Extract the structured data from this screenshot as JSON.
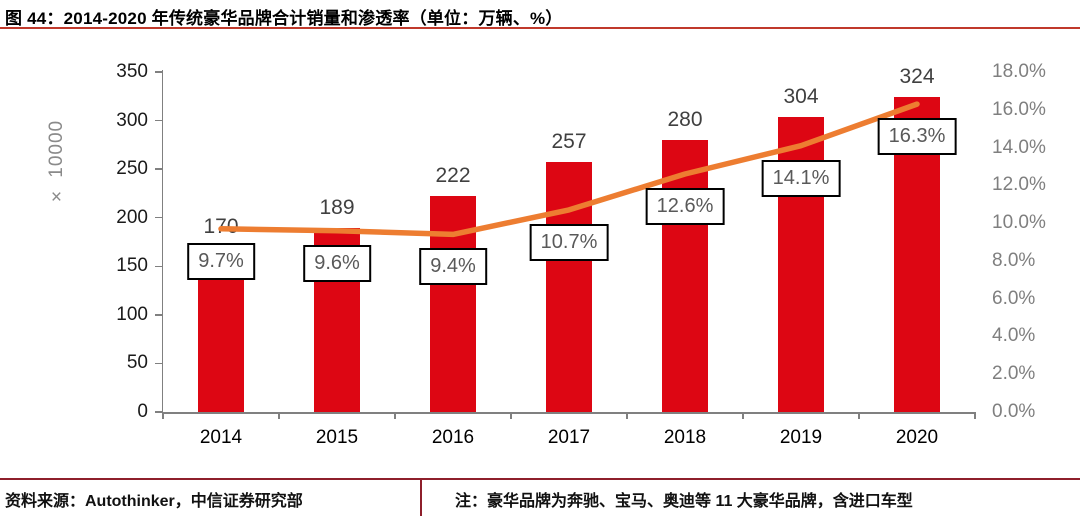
{
  "title": "图 44：2014-2020 年传统豪华品牌合计销量和渗透率（单位：万辆、%）",
  "footer": {
    "source": "资料来源：Autothinker，中信证券研究部",
    "note": "注：豪华品牌为奔驰、宝马、奥迪等 11 大豪华品牌，含进口车型"
  },
  "colors": {
    "bar": "#DD0613",
    "line": "#ED7D31",
    "title_rule": "#C0392B",
    "footer_rule": "#8E1F2B",
    "axis": "#808080",
    "left_tick_text": "#1a1a1a",
    "right_tick_text": "#7F7F7F",
    "bar_label_text": "#404040",
    "pct_label_text": "#595959"
  },
  "chart_data": {
    "type": "bar",
    "subtype": "bar+line combo, dual axis",
    "title": "图 44：2014-2020 年传统豪华品牌合计销量和渗透率（单位：万辆、%）",
    "categories": [
      "2014",
      "2015",
      "2016",
      "2017",
      "2018",
      "2019",
      "2020"
    ],
    "series": [
      {
        "name": "合计销量（万辆）",
        "type": "bar",
        "axis": "left",
        "values": [
          170,
          189,
          222,
          257,
          280,
          304,
          324
        ]
      },
      {
        "name": "渗透率（%）",
        "type": "line",
        "axis": "right",
        "values": [
          9.7,
          9.6,
          9.4,
          10.7,
          12.6,
          14.1,
          16.3
        ]
      }
    ],
    "bar_labels": [
      "170",
      "189",
      "222",
      "257",
      "280",
      "304",
      "324"
    ],
    "line_labels": [
      "9.7%",
      "9.6%",
      "9.4%",
      "10.7%",
      "12.6%",
      "14.1%",
      "16.3%"
    ],
    "left_axis": {
      "label": "× 10000",
      "min": 0,
      "max": 350,
      "step": 50,
      "ticks": [
        "0",
        "50",
        "100",
        "150",
        "200",
        "250",
        "300",
        "350"
      ]
    },
    "right_axis": {
      "min": 0,
      "max": 18,
      "step": 2,
      "ticks": [
        "0.0%",
        "2.0%",
        "4.0%",
        "6.0%",
        "8.0%",
        "10.0%",
        "12.0%",
        "14.0%",
        "16.0%",
        "18.0%"
      ]
    },
    "grid": false,
    "legend": "none"
  }
}
